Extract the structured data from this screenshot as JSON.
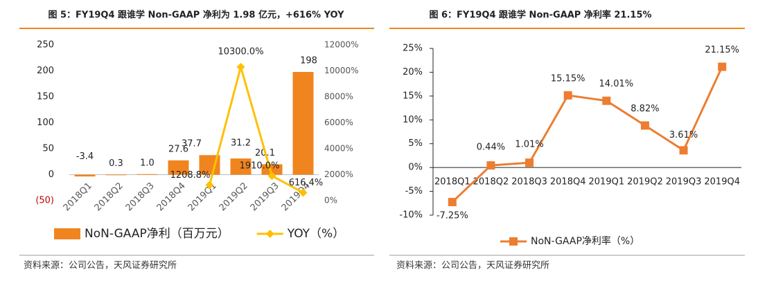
{
  "chart_data": [
    {
      "type": "combo",
      "title": "图 5：FY19Q4 跟谁学 Non-GAAP 净利为 1.98 亿元，+616% YOY",
      "categories": [
        "2018Q1",
        "2018Q2",
        "2018Q3",
        "2018Q4",
        "2019Q1",
        "2019Q2",
        "2019Q3",
        "2019Q4"
      ],
      "series": [
        {
          "name": "NoN-GAAP净利（百万元）",
          "type": "bar",
          "color": "#F0851F",
          "values": [
            -3.4,
            0.3,
            1.0,
            27.6,
            37.7,
            31.2,
            20.1,
            198
          ],
          "value_labels": [
            "-3.4",
            "0.3",
            "1.0",
            "27.6",
            "37.7",
            "31.2",
            "20.1",
            "198"
          ]
        },
        {
          "name": "YOY（%）",
          "type": "line",
          "axis": "y2",
          "color": "#FFC000",
          "values": [
            null,
            null,
            null,
            null,
            1208.8,
            10300.0,
            1910.0,
            616.4
          ],
          "value_labels": [
            null,
            null,
            null,
            null,
            "1208.8%",
            "10300.0%",
            "1910.0%",
            "616.4%"
          ]
        }
      ],
      "ylim": [
        -50,
        250
      ],
      "yticks": [
        {
          "value": -50,
          "label": "(50)"
        },
        0,
        50,
        100,
        150,
        200,
        250
      ],
      "y2lim": [
        0,
        12000
      ],
      "y2ticks": [
        {
          "value": 0,
          "label": "0%"
        },
        {
          "value": 2000,
          "label": "2000%"
        },
        {
          "value": 4000,
          "label": "4000%"
        },
        {
          "value": 6000,
          "label": "6000%"
        },
        {
          "value": 8000,
          "label": "8000%"
        },
        {
          "value": 10000,
          "label": "10000%"
        },
        {
          "value": 12000,
          "label": "12000%"
        }
      ],
      "source": "资料来源：公司公告，天风证券研究所"
    },
    {
      "type": "line",
      "title": "图 6：FY19Q4 跟谁学 Non-GAAP 净利率 21.15%",
      "categories": [
        "2018Q1",
        "2018Q2",
        "2018Q3",
        "2018Q4",
        "2019Q1",
        "2019Q2",
        "2019Q3",
        "2019Q4"
      ],
      "series": [
        {
          "name": "NoN-GAAP净利率（%）",
          "type": "line",
          "color": "#ED7D31",
          "values": [
            -7.25,
            0.44,
            1.01,
            15.15,
            14.01,
            8.82,
            3.61,
            21.15
          ],
          "value_labels": [
            "-7.25%",
            "0.44%",
            "1.01%",
            "15.15%",
            "14.01%",
            "8.82%",
            "3.61%",
            "21.15%"
          ]
        }
      ],
      "ylim": [
        -10,
        25
      ],
      "yticks": [
        {
          "value": -10,
          "label": "-10%"
        },
        {
          "value": -5,
          "label": "-5%"
        },
        {
          "value": 0,
          "label": "0%"
        },
        {
          "value": 5,
          "label": "5%"
        },
        {
          "value": 10,
          "label": "10%"
        },
        {
          "value": 15,
          "label": "15%"
        },
        {
          "value": 20,
          "label": "20%"
        },
        {
          "value": 25,
          "label": "25%"
        }
      ],
      "source": "资料来源：公司公告，天风证券研究所"
    }
  ]
}
